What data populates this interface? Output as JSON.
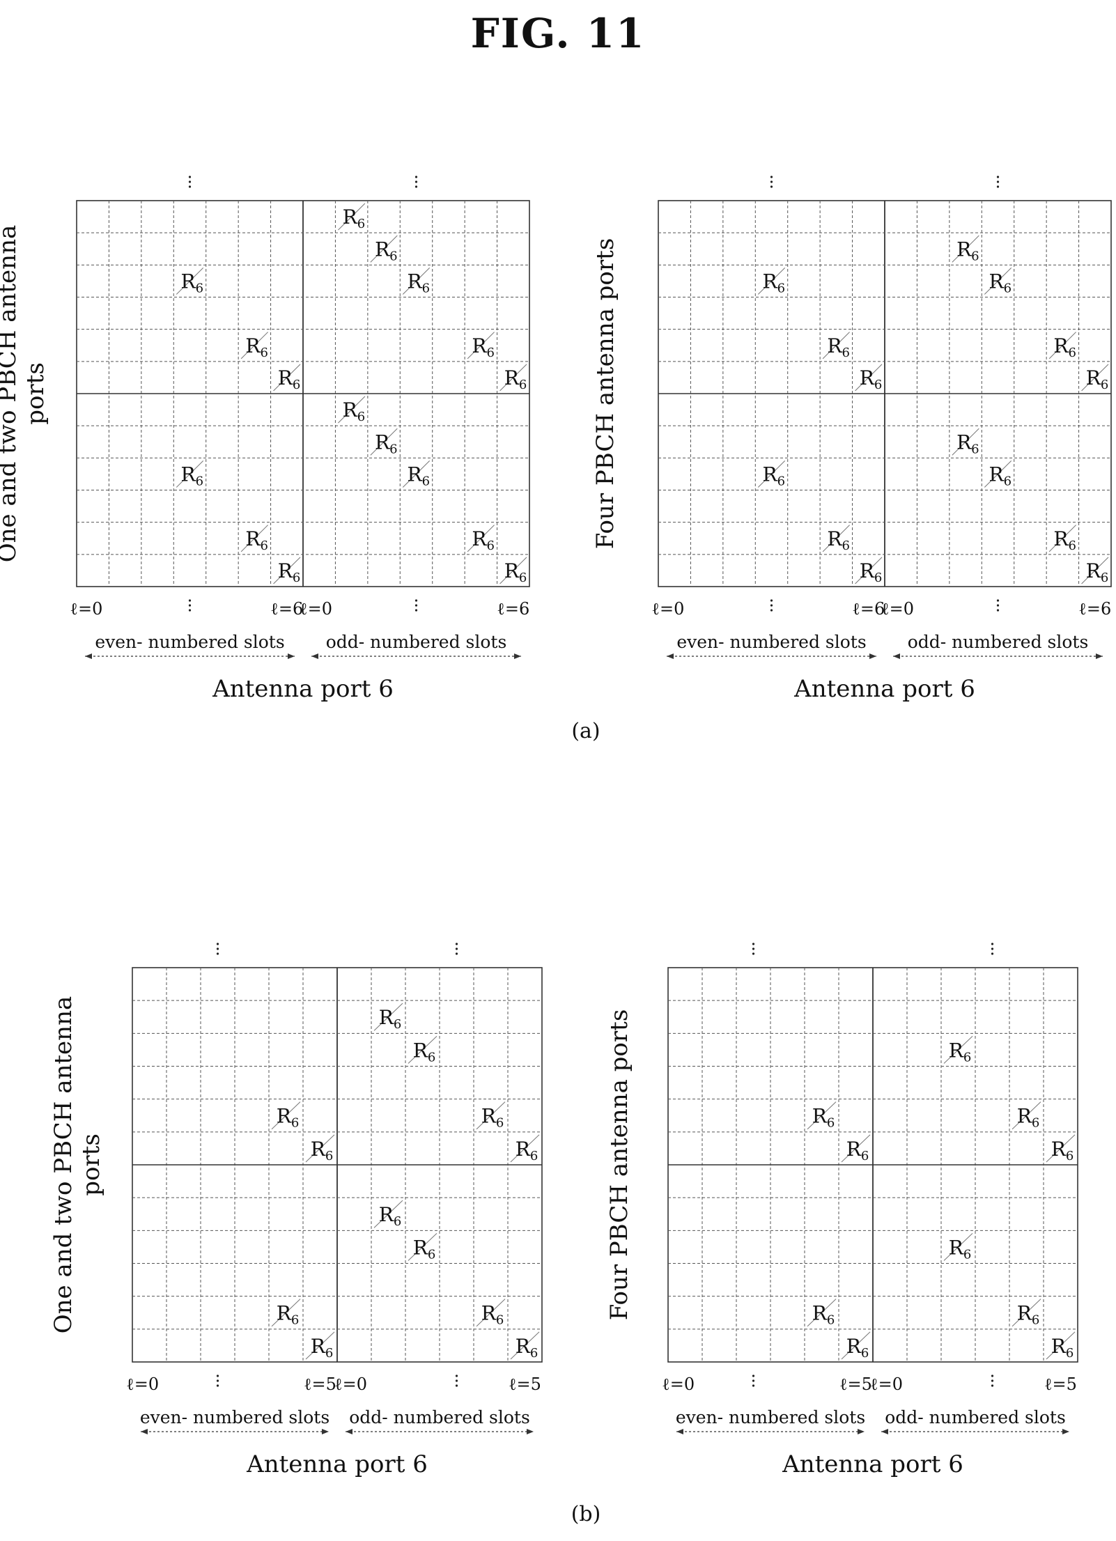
{
  "figure": {
    "title": "FIG. 11"
  },
  "panels": [
    {
      "id": "a",
      "caption": "(a)",
      "diagrams": [
        {
          "ylabel_lines": [
            "One and two PBCH antenna",
            "ports"
          ],
          "t_start": "ℓ=0",
          "t_end_even": "ℓ=6",
          "t_start_odd": "ℓ=0",
          "t_end_odd": "ℓ=6",
          "even_label": "even- numbered slots",
          "odd_label": "odd- numbered slots",
          "antenna_label": "Antenna port 6",
          "marker_text": "R",
          "marker_sub": "6",
          "markers": [
            [
              0,
              8
            ],
            [
              1,
              9
            ],
            [
              2,
              3
            ],
            [
              2,
              10
            ],
            [
              4,
              5
            ],
            [
              4,
              12
            ],
            [
              5,
              6
            ],
            [
              5,
              13
            ],
            [
              6,
              8
            ],
            [
              7,
              9
            ],
            [
              8,
              3
            ],
            [
              8,
              10
            ],
            [
              10,
              5
            ],
            [
              10,
              12
            ],
            [
              11,
              6
            ],
            [
              11,
              13
            ]
          ]
        },
        {
          "ylabel_lines": [
            "Four PBCH antenna ports"
          ],
          "t_start": "ℓ=0",
          "t_end_even": "ℓ=6",
          "t_start_odd": "ℓ=0",
          "t_end_odd": "ℓ=6",
          "even_label": "even- numbered slots",
          "odd_label": "odd- numbered slots",
          "antenna_label": "Antenna port 6",
          "marker_text": "R",
          "marker_sub": "6",
          "markers": [
            [
              1,
              9
            ],
            [
              2,
              3
            ],
            [
              2,
              10
            ],
            [
              4,
              5
            ],
            [
              4,
              12
            ],
            [
              5,
              6
            ],
            [
              5,
              13
            ],
            [
              7,
              9
            ],
            [
              8,
              3
            ],
            [
              8,
              10
            ],
            [
              10,
              5
            ],
            [
              10,
              12
            ],
            [
              11,
              6
            ],
            [
              11,
              13
            ]
          ]
        }
      ]
    },
    {
      "id": "b",
      "caption": "(b)",
      "diagrams": [
        {
          "ylabel_lines": [
            "One and two PBCH antenna",
            "ports"
          ],
          "t_start": "ℓ=0",
          "t_end_even": "ℓ=5",
          "t_start_odd": "ℓ=0",
          "t_end_odd": "ℓ=5",
          "even_label": "even- numbered slots",
          "odd_label": "odd- numbered slots",
          "antenna_label": "Antenna port 6",
          "marker_text": "R",
          "marker_sub": "6",
          "markers": [
            [
              1,
              7
            ],
            [
              2,
              8
            ],
            [
              4,
              4
            ],
            [
              4,
              10
            ],
            [
              5,
              5
            ],
            [
              5,
              11
            ],
            [
              7,
              7
            ],
            [
              8,
              8
            ],
            [
              10,
              4
            ],
            [
              10,
              10
            ],
            [
              11,
              5
            ],
            [
              11,
              11
            ]
          ]
        },
        {
          "ylabel_lines": [
            "Four PBCH antenna ports"
          ],
          "t_start": "ℓ=0",
          "t_end_even": "ℓ=5",
          "t_start_odd": "ℓ=0",
          "t_end_odd": "ℓ=5",
          "even_label": "even- numbered slots",
          "odd_label": "odd- numbered slots",
          "antenna_label": "Antenna port 6",
          "marker_text": "R",
          "marker_sub": "6",
          "markers": [
            [
              2,
              8
            ],
            [
              4,
              4
            ],
            [
              4,
              10
            ],
            [
              5,
              5
            ],
            [
              5,
              11
            ],
            [
              8,
              8
            ],
            [
              10,
              4
            ],
            [
              10,
              10
            ],
            [
              11,
              5
            ],
            [
              11,
              11
            ]
          ]
        }
      ]
    }
  ]
}
